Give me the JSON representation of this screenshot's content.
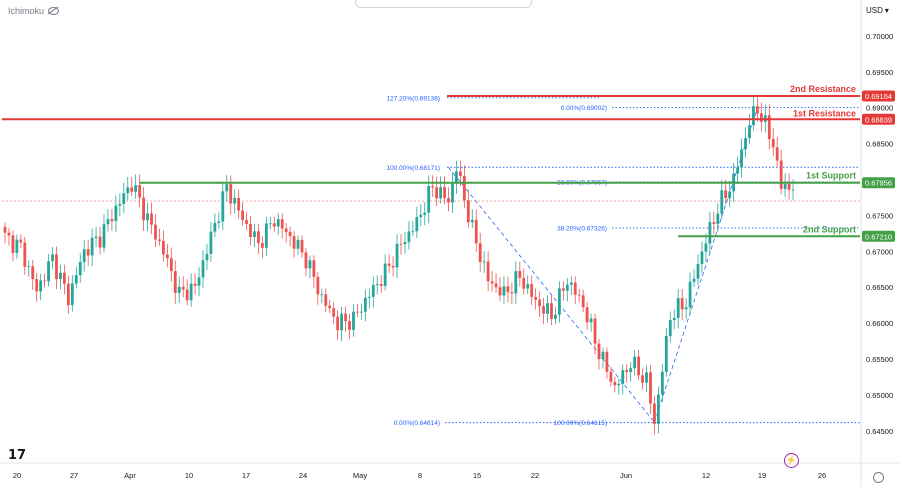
{
  "header": {
    "indicator_label": "Ichimoku",
    "currency": "USD",
    "dropdown_icon": "chevron-down-icon"
  },
  "icons": {
    "logo": "tradingview-logo",
    "lightning": "lightning-icon",
    "settings": "gear-icon",
    "eye": "eye-crossed-icon"
  },
  "colors": {
    "up": "#26a69a",
    "down": "#ef5350",
    "resistance": "#e53935",
    "support": "#43a047",
    "fib": "#2962ff",
    "text_fib": "#2962ff",
    "bg": "#ffffff"
  },
  "chart_data": {
    "type": "candlestick",
    "pair": "",
    "y_axis": {
      "ticks": [
        "0.70000",
        "0.69500",
        "0.69000",
        "0.68500",
        "0.68000",
        "0.67500",
        "0.67000",
        "0.66500",
        "0.66000",
        "0.65500",
        "0.65000",
        "0.64500"
      ],
      "range": [
        0.644,
        0.7025
      ]
    },
    "x_axis": {
      "tick_labels": [
        "20",
        "27",
        "Apr",
        "10",
        "17",
        "24",
        "May",
        "8",
        "15",
        "22",
        "Jun",
        "12",
        "19",
        "26"
      ]
    },
    "levels": [
      {
        "label": "2nd Resistance",
        "price": 0.69164,
        "price_label": "0.69164",
        "kind": "resistance"
      },
      {
        "label": "1st Resistance",
        "price": 0.68839,
        "price_label": "0.68839",
        "kind": "resistance"
      },
      {
        "label": "1st Support",
        "price": 0.67956,
        "price_label": "0.67956",
        "kind": "support"
      },
      {
        "label": "2nd Support",
        "price": 0.6721,
        "price_label": "0.67210",
        "kind": "support"
      }
    ],
    "fib_labels": [
      {
        "text": "127.20%(0.69138)",
        "price": 0.69138
      },
      {
        "text": "0.00%(0.69002)",
        "price": 0.69002
      },
      {
        "text": "100.00%(0.68171)",
        "price": 0.68171
      },
      {
        "text": "23.60%(0.67967)",
        "price": 0.67967
      },
      {
        "text": "38.20%(0.67326)",
        "price": 0.67326
      },
      {
        "text": "0.00%(0.64614)",
        "price": 0.64614
      },
      {
        "text": "100.00%(0.64615)",
        "price": 0.64615
      }
    ],
    "current_price": 0.677,
    "anchor_points": [
      [
        0,
        0.672
      ],
      [
        4,
        0.6705
      ],
      [
        8,
        0.6645
      ],
      [
        12,
        0.669
      ],
      [
        16,
        0.6635
      ],
      [
        20,
        0.67
      ],
      [
        24,
        0.672
      ],
      [
        28,
        0.676
      ],
      [
        32,
        0.6795
      ],
      [
        36,
        0.6745
      ],
      [
        40,
        0.67
      ],
      [
        44,
        0.664
      ],
      [
        48,
        0.665
      ],
      [
        52,
        0.672
      ],
      [
        56,
        0.679
      ],
      [
        60,
        0.6745
      ],
      [
        64,
        0.671
      ],
      [
        68,
        0.6745
      ],
      [
        72,
        0.672
      ],
      [
        76,
        0.669
      ],
      [
        80,
        0.6635
      ],
      [
        84,
        0.66
      ],
      [
        88,
        0.6605
      ],
      [
        92,
        0.664
      ],
      [
        96,
        0.667
      ],
      [
        100,
        0.671
      ],
      [
        104,
        0.674
      ],
      [
        108,
        0.679
      ],
      [
        112,
        0.677
      ],
      [
        114,
        0.6817
      ],
      [
        118,
        0.673
      ],
      [
        122,
        0.666
      ],
      [
        126,
        0.664
      ],
      [
        130,
        0.6665
      ],
      [
        134,
        0.663
      ],
      [
        138,
        0.661
      ],
      [
        142,
        0.666
      ],
      [
        146,
        0.6625
      ],
      [
        150,
        0.656
      ],
      [
        154,
        0.651
      ],
      [
        158,
        0.6545
      ],
      [
        162,
        0.652
      ],
      [
        164,
        0.6462
      ],
      [
        168,
        0.661
      ],
      [
        172,
        0.663
      ],
      [
        176,
        0.67
      ],
      [
        180,
        0.676
      ],
      [
        184,
        0.68
      ],
      [
        188,
        0.688
      ],
      [
        190,
        0.69
      ],
      [
        194,
        0.685
      ],
      [
        196,
        0.679
      ],
      [
        199,
        0.679
      ]
    ]
  }
}
